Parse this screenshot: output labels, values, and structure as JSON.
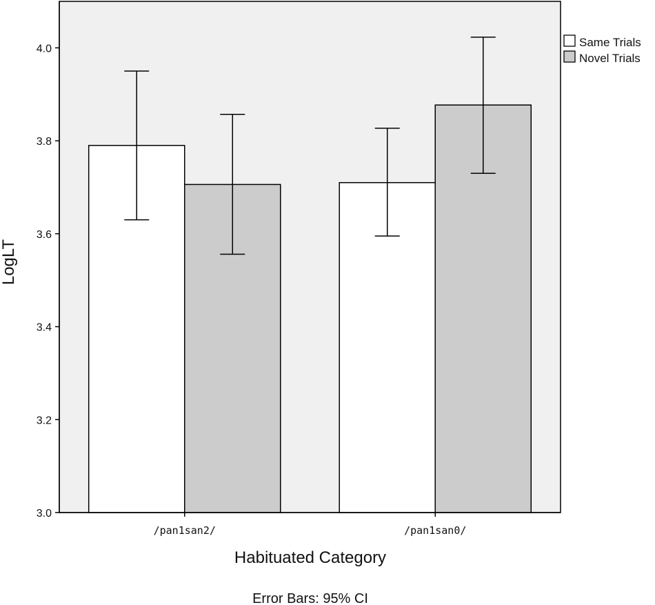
{
  "chart_data": {
    "type": "bar",
    "categories": [
      "/pan1san2/",
      "/pan1san0/"
    ],
    "series": [
      {
        "name": "Same Trials",
        "color": "#ffffff",
        "values": [
          3.79,
          3.71
        ],
        "ci_low": [
          3.63,
          3.595
        ],
        "ci_high": [
          3.95,
          3.827
        ]
      },
      {
        "name": "Novel Trials",
        "color": "#cccccc",
        "values": [
          3.706,
          3.877
        ],
        "ci_low": [
          3.556,
          3.73
        ],
        "ci_high": [
          3.857,
          4.023
        ]
      }
    ],
    "xlabel": "Habituated Category",
    "ylabel": "LogLT",
    "ylim": [
      3.0,
      4.1
    ],
    "yticks": [
      "3.0",
      "3.2",
      "3.4",
      "3.6",
      "3.8",
      "4.0"
    ],
    "note": "Error Bars: 95% CI",
    "legend_position": "top-right",
    "plot_background": "#f0f0f0",
    "grid": false
  }
}
